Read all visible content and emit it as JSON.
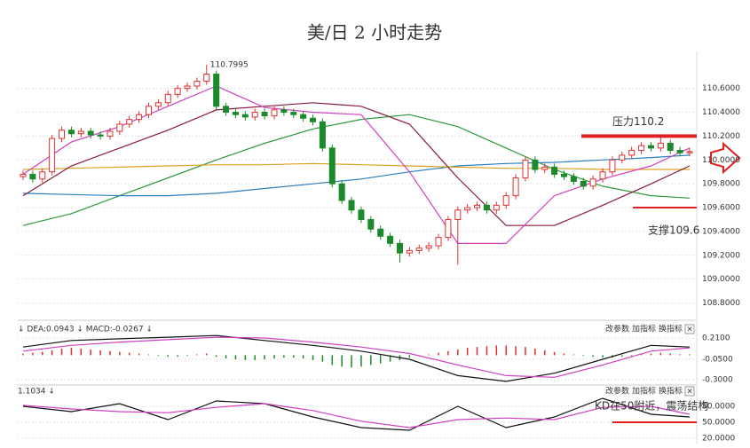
{
  "chart_data": [
    {
      "type": "candlestick",
      "title": "美/日 2 小时走势",
      "ylim": [
        108.7,
        110.91
      ],
      "yticks": [
        {
          "value": 108.8,
          "label": "108.8000"
        },
        {
          "value": 109.0,
          "label": "109.0000"
        },
        {
          "value": 109.2,
          "label": "109.2000"
        },
        {
          "value": 109.4,
          "label": "109.4000"
        },
        {
          "value": 109.6,
          "label": "109.6000"
        },
        {
          "value": 109.8,
          "label": "109.8000"
        },
        {
          "value": 110.0,
          "label": "110.0000"
        },
        {
          "value": 110.2,
          "label": "110.2000"
        },
        {
          "value": 110.4,
          "label": "110.4000"
        },
        {
          "value": 110.6,
          "label": "110.6000"
        }
      ],
      "grid": true,
      "up_color": "#e03030",
      "down_color": "#1a8a2a",
      "open": [
        109.86,
        109.88,
        109.84,
        109.9,
        110.18,
        110.25,
        110.22,
        110.24,
        110.21,
        110.2,
        110.24,
        110.3,
        110.34,
        110.38,
        110.45,
        110.48,
        110.55,
        110.6,
        110.62,
        110.66,
        110.72,
        110.45,
        110.4,
        110.38,
        110.36,
        110.4,
        110.37,
        110.42,
        110.4,
        110.38,
        110.35,
        110.32,
        110.1,
        109.8,
        109.66,
        109.58,
        109.5,
        109.42,
        109.36,
        109.3,
        109.22,
        109.24,
        109.26,
        109.28,
        109.35,
        109.5,
        109.58,
        109.6,
        109.62,
        109.58,
        109.62,
        109.7,
        109.85,
        110.0,
        109.92,
        109.94,
        109.88,
        109.86,
        109.82,
        109.78,
        109.84,
        109.9,
        110.0,
        110.04,
        110.08,
        110.12,
        110.1,
        110.14,
        110.08,
        110.06
      ],
      "high": [
        109.91,
        109.91,
        109.93,
        110.21,
        110.28,
        110.28,
        110.27,
        110.27,
        110.24,
        110.27,
        110.33,
        110.37,
        110.41,
        110.48,
        110.51,
        110.58,
        110.63,
        110.65,
        110.69,
        110.7995,
        110.75,
        110.48,
        110.43,
        110.41,
        110.43,
        110.43,
        110.45,
        110.45,
        110.43,
        110.41,
        110.38,
        110.35,
        110.13,
        109.83,
        109.69,
        109.61,
        109.53,
        109.45,
        109.39,
        109.33,
        109.27,
        109.29,
        109.31,
        109.38,
        109.53,
        109.61,
        109.63,
        109.65,
        109.65,
        109.65,
        109.73,
        109.88,
        110.03,
        110.03,
        109.97,
        109.97,
        109.91,
        109.89,
        109.85,
        109.87,
        109.93,
        110.03,
        110.07,
        110.11,
        110.15,
        110.15,
        110.2,
        110.17,
        110.11,
        110.1
      ],
      "low": [
        109.83,
        109.81,
        109.81,
        109.87,
        110.15,
        110.19,
        110.19,
        110.18,
        110.17,
        110.17,
        110.21,
        110.27,
        110.31,
        110.35,
        110.42,
        110.45,
        110.52,
        110.57,
        110.59,
        110.63,
        110.42,
        110.37,
        110.35,
        110.33,
        110.33,
        110.34,
        110.34,
        110.37,
        110.35,
        110.32,
        110.29,
        110.07,
        109.77,
        109.63,
        109.55,
        109.47,
        109.39,
        109.33,
        109.27,
        109.14,
        109.19,
        109.21,
        109.23,
        109.25,
        109.32,
        109.12,
        109.55,
        109.57,
        109.55,
        109.55,
        109.59,
        109.67,
        109.82,
        109.89,
        109.89,
        109.85,
        109.83,
        109.79,
        109.75,
        109.75,
        109.81,
        109.87,
        109.97,
        110.01,
        110.05,
        110.07,
        110.07,
        110.05,
        110.03,
        110.03
      ],
      "close": [
        109.88,
        109.84,
        109.9,
        110.18,
        110.25,
        110.22,
        110.24,
        110.21,
        110.2,
        110.24,
        110.3,
        110.34,
        110.38,
        110.45,
        110.48,
        110.55,
        110.6,
        110.62,
        110.66,
        110.72,
        110.45,
        110.4,
        110.38,
        110.36,
        110.4,
        110.37,
        110.42,
        110.4,
        110.38,
        110.35,
        110.32,
        110.1,
        109.8,
        109.66,
        109.58,
        109.5,
        109.42,
        109.36,
        109.3,
        109.22,
        109.24,
        109.26,
        109.28,
        109.35,
        109.5,
        109.58,
        109.6,
        109.62,
        109.58,
        109.62,
        109.7,
        109.85,
        110.0,
        109.92,
        109.94,
        109.88,
        109.86,
        109.82,
        109.78,
        109.84,
        109.9,
        110.0,
        110.04,
        110.08,
        110.12,
        110.1,
        110.14,
        110.08,
        110.06,
        110.07
      ],
      "lines": [
        {
          "color": "#2e9a3a",
          "x": [
            0,
            5,
            10,
            15,
            20,
            25,
            30,
            35,
            40,
            45,
            50,
            55,
            60,
            65,
            69
          ],
          "values": [
            109.45,
            109.55,
            109.7,
            109.85,
            110.0,
            110.14,
            110.26,
            110.34,
            110.38,
            110.28,
            110.1,
            109.92,
            109.78,
            109.7,
            109.68
          ]
        },
        {
          "color": "#2a7fc0",
          "x": [
            0,
            5,
            10,
            15,
            20,
            25,
            30,
            35,
            40,
            45,
            50,
            55,
            60,
            65,
            69
          ],
          "values": [
            109.72,
            109.71,
            109.7,
            109.7,
            109.72,
            109.76,
            109.8,
            109.84,
            109.9,
            109.95,
            109.97,
            109.98,
            110.0,
            110.02,
            110.04
          ]
        },
        {
          "color": "#e0a020",
          "x": [
            0,
            5,
            10,
            15,
            20,
            25,
            30,
            35,
            40,
            45,
            50,
            55,
            60,
            65,
            69
          ],
          "values": [
            109.92,
            109.93,
            109.94,
            109.95,
            109.96,
            109.96,
            109.97,
            109.96,
            109.95,
            109.94,
            109.93,
            109.93,
            109.92,
            109.92,
            109.92
          ]
        },
        {
          "color": "#8a1a3a",
          "x": [
            0,
            5,
            10,
            15,
            20,
            25,
            30,
            35,
            40,
            45,
            50,
            55,
            60,
            65,
            69
          ],
          "values": [
            109.7,
            109.95,
            110.1,
            110.25,
            110.42,
            110.45,
            110.48,
            110.45,
            110.3,
            109.85,
            109.45,
            109.45,
            109.62,
            109.8,
            109.95
          ]
        },
        {
          "color": "#d040c0",
          "x": [
            0,
            5,
            10,
            15,
            20,
            25,
            30,
            35,
            40,
            45,
            50,
            55,
            60,
            65,
            69
          ],
          "values": [
            109.88,
            110.15,
            110.28,
            110.45,
            110.62,
            110.44,
            110.4,
            110.38,
            109.9,
            109.3,
            109.3,
            109.7,
            109.84,
            109.95,
            110.1
          ]
        }
      ],
      "annotations": [
        {
          "text": "110.7995",
          "value": 110.7995,
          "color": "#d06020"
        }
      ],
      "levels": [
        {
          "value": 110.2,
          "label": "压力110.2",
          "color": "#e02020"
        },
        {
          "value": 109.6,
          "label": "支撑109.6",
          "color": "#e02020"
        }
      ]
    },
    {
      "type": "macd",
      "header": "↓ DEA:0.0943 ↓ MACD:-0.0267 ↓",
      "controls": [
        "改参数",
        "加指标",
        "换指标",
        "×"
      ],
      "ylim": [
        -0.343,
        0.362
      ],
      "yticks": [
        {
          "value": 0.21,
          "label": "0.2100"
        },
        {
          "value": -0.05,
          "label": "-0.0500"
        },
        {
          "value": -0.3,
          "label": "-0.3000"
        }
      ],
      "grid": true,
      "bars": [
        0.02,
        0.03,
        0.04,
        0.06,
        0.08,
        0.09,
        0.08,
        0.07,
        0.06,
        0.05,
        0.04,
        0.03,
        0.02,
        0.01,
        -0.01,
        -0.02,
        -0.02,
        -0.01,
        0.01,
        0.02,
        -0.02,
        -0.04,
        -0.05,
        -0.06,
        -0.06,
        -0.05,
        -0.04,
        -0.03,
        -0.03,
        -0.04,
        -0.06,
        -0.08,
        -0.12,
        -0.14,
        -0.15,
        -0.14,
        -0.12,
        -0.1,
        -0.08,
        -0.06,
        -0.03,
        -0.01,
        0.01,
        0.03,
        0.05,
        0.07,
        0.09,
        0.1,
        0.11,
        0.12,
        0.12,
        0.11,
        0.1,
        0.08,
        0.06,
        0.04,
        0.02,
        0.01,
        -0.01,
        -0.02,
        -0.03,
        -0.03,
        -0.02,
        -0.01,
        0.01,
        0.02,
        0.03,
        0.02,
        0.01,
        0.01
      ],
      "up_color": "#e03030",
      "down_color": "#1a8a2a",
      "lines": [
        {
          "color": "#111111",
          "x": [
            0,
            5,
            10,
            15,
            20,
            25,
            30,
            35,
            40,
            45,
            50,
            55,
            60,
            65,
            69
          ],
          "values": [
            0.1,
            0.18,
            0.2,
            0.22,
            0.24,
            0.18,
            0.12,
            0.05,
            -0.05,
            -0.25,
            -0.32,
            -0.22,
            -0.05,
            0.12,
            0.1
          ]
        },
        {
          "color": "#d040c0",
          "x": [
            0,
            5,
            10,
            15,
            20,
            25,
            30,
            35,
            40,
            45,
            50,
            55,
            60,
            65,
            69
          ],
          "values": [
            0.05,
            0.12,
            0.16,
            0.19,
            0.22,
            0.21,
            0.16,
            0.1,
            0.02,
            -0.12,
            -0.25,
            -0.27,
            -0.12,
            0.05,
            0.09
          ]
        }
      ]
    },
    {
      "type": "kd",
      "header": "1.1034 ↓",
      "controls": [
        "改参数",
        "加指标",
        "换指标",
        "×"
      ],
      "ylim": [
        10,
        115
      ],
      "yticks": [
        {
          "value": 80,
          "label": "80.0000"
        },
        {
          "value": 50,
          "label": "50.0000"
        },
        {
          "value": 20,
          "label": "20.0000"
        }
      ],
      "grid": true,
      "lines": [
        {
          "color": "#111111",
          "x": [
            0,
            5,
            10,
            15,
            20,
            25,
            30,
            35,
            40,
            45,
            50,
            55,
            60,
            65,
            69
          ],
          "values": [
            80,
            70,
            85,
            55,
            90,
            85,
            60,
            40,
            35,
            80,
            40,
            60,
            95,
            65,
            60
          ]
        },
        {
          "color": "#d040c0",
          "x": [
            0,
            5,
            10,
            15,
            20,
            25,
            30,
            35,
            40,
            45,
            50,
            55,
            60,
            65,
            69
          ],
          "values": [
            82,
            75,
            70,
            68,
            78,
            85,
            72,
            52,
            40,
            55,
            58,
            55,
            78,
            80,
            65
          ]
        }
      ],
      "levels": [
        {
          "value": 50,
          "label": "KD在50附近，震荡结构",
          "color": "#e02020"
        }
      ]
    }
  ]
}
